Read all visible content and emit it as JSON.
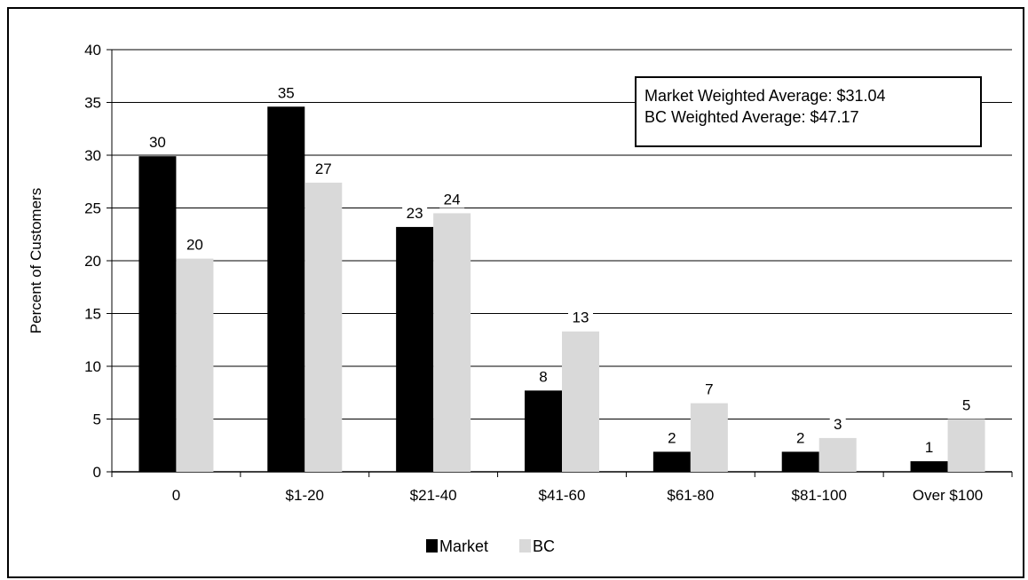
{
  "chart_data": {
    "type": "bar",
    "title": "",
    "xlabel": "",
    "ylabel": "Percent of Customers",
    "ylim": [
      0,
      40
    ],
    "yticks": [
      "0",
      "5",
      "10",
      "15",
      "20",
      "25",
      "30",
      "35",
      "40"
    ],
    "grid": true,
    "legend_position": "bottom",
    "categories": [
      "0",
      "$1-20",
      "$21-40",
      "$41-60",
      "$61-80",
      "$81-100",
      "Over $100"
    ],
    "series": [
      {
        "name": "Market",
        "color": "#000000",
        "values": [
          29.9,
          34.6,
          23.2,
          7.7,
          1.9,
          1.9,
          1.0
        ],
        "labels": [
          "30",
          "35",
          "23",
          "8",
          "2",
          "2",
          "1"
        ]
      },
      {
        "name": "BC",
        "color": "#d9d9d9",
        "values": [
          20.2,
          27.4,
          24.5,
          13.3,
          6.5,
          3.2,
          5.0
        ],
        "labels": [
          "20",
          "27",
          "24",
          "13",
          "7",
          "3",
          "5"
        ]
      }
    ],
    "annotations": [
      "Market Weighted Average: $31.04",
      "BC Weighted Average: $47.17"
    ],
    "legend_label_texts": [
      "Market",
      "BC"
    ]
  }
}
